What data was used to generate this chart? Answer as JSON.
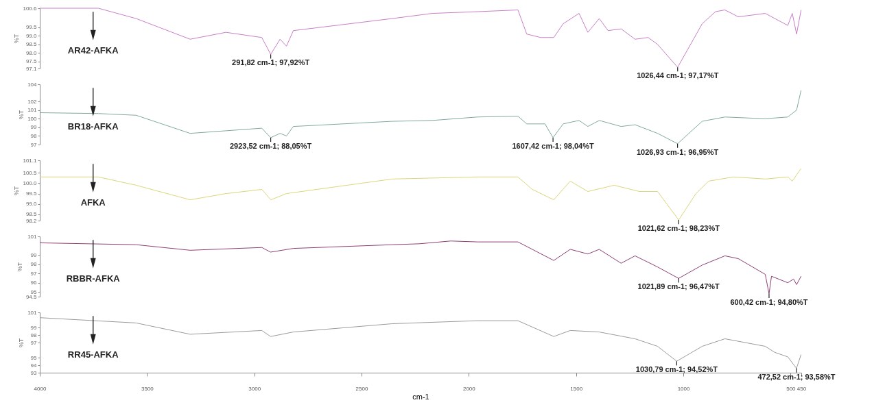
{
  "chart_data": [
    {
      "type": "line",
      "ylabel": "%T",
      "tick_labels": "y",
      "xlim": [
        4000,
        450
      ],
      "ylim": [
        97.1,
        100.6
      ],
      "yticks": [
        100.6,
        99.5,
        {
          "value": 99,
          "label": "99.0"
        },
        98.5,
        {
          "value": 98,
          "label": "98.0"
        },
        97.5,
        97.1
      ],
      "series": [
        {
          "name": "AR42-AFKA",
          "color": "#c77fc7",
          "x": [
            4000,
            3727,
            3551,
            3299,
            3132,
            2965,
            2923.52,
            2880,
            2850,
            2818,
            2357,
            2170,
            1959,
            1771,
            1730,
            1665,
            1604,
            1560,
            1486,
            1445,
            1392,
            1351,
            1290,
            1225,
            1164,
            1120,
            1026.44,
            912,
            850,
            806,
            744,
            618,
            513,
            492,
            472,
            451
          ],
          "values": [
            100.6,
            100.6,
            100.0,
            98.8,
            99.2,
            98.9,
            97.92,
            98.8,
            98.4,
            99.3,
            100.0,
            100.3,
            100.4,
            100.5,
            99.1,
            98.9,
            98.9,
            99.7,
            100.3,
            99.2,
            100.0,
            99.3,
            99.4,
            98.8,
            98.9,
            98.5,
            97.17,
            99.7,
            100.4,
            100.5,
            100.1,
            100.3,
            99.6,
            100.3,
            99.1,
            100.5
          ]
        }
      ],
      "annotations": [
        {
          "text": "291,82 cm-1; 97,92%T",
          "x": 2923.52,
          "y": 97.92
        },
        {
          "text": "1026,44 cm-1; 97,17%T",
          "x": 1026.44,
          "y": 97.17
        }
      ]
    },
    {
      "type": "line",
      "ylabel": "%T",
      "tick_labels": "y",
      "xlim": [
        4000,
        450
      ],
      "ylim": [
        97,
        104
      ],
      "yticks": [
        104,
        102,
        101,
        100,
        99,
        98,
        97
      ],
      "series": [
        {
          "name": "BR18-AFKA",
          "color": "#7fa8a0",
          "x": [
            4000,
            3727,
            3551,
            3299,
            3132,
            2965,
            2923.52,
            2880,
            2850,
            2818,
            2357,
            2170,
            1959,
            1771,
            1730,
            1645,
            1607.42,
            1560,
            1486,
            1445,
            1392,
            1290,
            1225,
            1120,
            1026.93,
            912,
            806,
            618,
            513,
            472,
            451
          ],
          "values": [
            100.7,
            100.6,
            100.4,
            98.3,
            98.6,
            98.9,
            97.8,
            98.3,
            98.0,
            99.1,
            99.7,
            99.8,
            100.2,
            100.3,
            99.4,
            99.4,
            97.8,
            99.4,
            99.8,
            99.1,
            99.8,
            99.1,
            99.3,
            98.3,
            97.1,
            99.7,
            100.2,
            100.0,
            100.2,
            101.0,
            103.3
          ]
        }
      ],
      "annotations": [
        {
          "text": "2923,52 cm-1; 88,05%T",
          "x": 2923.52,
          "y": 97.8
        },
        {
          "text": "1607,42 cm-1; 98,04%T",
          "x": 1607.42,
          "y": 97.8
        },
        {
          "text": "1026,93 cm-1; 96,95%T",
          "x": 1026.93,
          "y": 97.1
        }
      ]
    },
    {
      "type": "line",
      "ylabel": "%T",
      "tick_labels": "y",
      "xlim": [
        4000,
        450
      ],
      "ylim": [
        98.2,
        101.1
      ],
      "yticks": [
        101.1,
        100.5,
        {
          "value": 100,
          "label": "100.0"
        },
        99.5,
        {
          "value": 99,
          "label": "99.0"
        },
        98.5,
        98.2
      ],
      "series": [
        {
          "name": "AFKA",
          "color": "#dcd67a",
          "x": [
            4000,
            3727,
            3551,
            3299,
            3132,
            2965,
            2923,
            2850,
            2357,
            1959,
            1771,
            1704,
            1604,
            1527,
            1445,
            1322,
            1205,
            1120,
            1021.62,
            941,
            882,
            765,
            618,
            513,
            492,
            472,
            451
          ],
          "values": [
            100.3,
            100.3,
            99.9,
            99.2,
            99.5,
            99.7,
            99.2,
            99.5,
            100.2,
            100.3,
            100.3,
            99.7,
            99.2,
            100.1,
            99.6,
            99.9,
            99.6,
            99.6,
            98.23,
            99.5,
            100.1,
            100.3,
            100.2,
            100.3,
            100.1,
            100.4,
            100.7
          ]
        }
      ],
      "annotations": [
        {
          "text": "1021,62 cm-1; 98,23%T",
          "x": 1021.62,
          "y": 98.23
        }
      ]
    },
    {
      "type": "line",
      "ylabel": "%T",
      "tick_labels": "y",
      "xlim": [
        4000,
        450
      ],
      "ylim": [
        94.5,
        101
      ],
      "yticks": [
        101,
        99,
        98,
        97,
        96,
        95,
        94.5
      ],
      "series": [
        {
          "name": "RBBR-AFKA",
          "color": "#8c3f74",
          "x": [
            4000,
            3551,
            3299,
            2965,
            2924,
            2818,
            2357,
            2231,
            2084,
            1959,
            1771,
            1604,
            1527,
            1445,
            1392,
            1290,
            1225,
            1120,
            1021.89,
            912,
            806,
            744,
            618,
            600.42,
            589,
            513,
            486,
            472,
            451
          ],
          "values": [
            100.3,
            100.1,
            99.5,
            99.8,
            99.3,
            99.7,
            100.1,
            100.2,
            100.5,
            100.4,
            100.4,
            98.4,
            99.6,
            99.1,
            99.6,
            98.1,
            98.9,
            97.7,
            96.47,
            97.9,
            98.9,
            98.6,
            96.9,
            94.8,
            96.7,
            96.0,
            96.4,
            95.8,
            96.7
          ]
        }
      ],
      "annotations": [
        {
          "text": "1021,89 cm-1; 96,47%T",
          "x": 1021.89,
          "y": 96.47
        },
        {
          "text": "600,42 cm-1; 94,80%T",
          "x": 600.42,
          "y": 94.8
        }
      ]
    },
    {
      "type": "line",
      "ylabel": "%T",
      "xlabel": "cm-1",
      "xlim": [
        4000,
        450
      ],
      "xticks": [
        4000,
        3500,
        3000,
        2500,
        2000,
        1500,
        1000,
        500,
        450
      ],
      "ylim": [
        93,
        101
      ],
      "yticks": [
        101,
        99,
        98,
        97,
        95,
        94,
        93
      ],
      "series": [
        {
          "name": "RR45-AFKA",
          "color": "#9a9a9a",
          "x": [
            4000,
            3551,
            3299,
            2965,
            2924,
            2818,
            2357,
            1959,
            1771,
            1604,
            1527,
            1392,
            1225,
            1120,
            1030.79,
            912,
            806,
            618,
            574,
            513,
            472.52,
            451
          ],
          "values": [
            100.3,
            99.6,
            98.1,
            98.6,
            97.8,
            98.4,
            99.5,
            99.9,
            99.9,
            97.8,
            98.6,
            98.4,
            97.5,
            96.5,
            94.52,
            96.5,
            97.5,
            96.5,
            95.7,
            95.1,
            93.58,
            95.4
          ]
        }
      ],
      "annotations": [
        {
          "text": "1030,79 cm-1; 94,52%T",
          "x": 1030.79,
          "y": 94.52
        },
        {
          "text": "472,52 cm-1; 93,58%T",
          "x": 472.52,
          "y": 93.58
        }
      ]
    }
  ]
}
